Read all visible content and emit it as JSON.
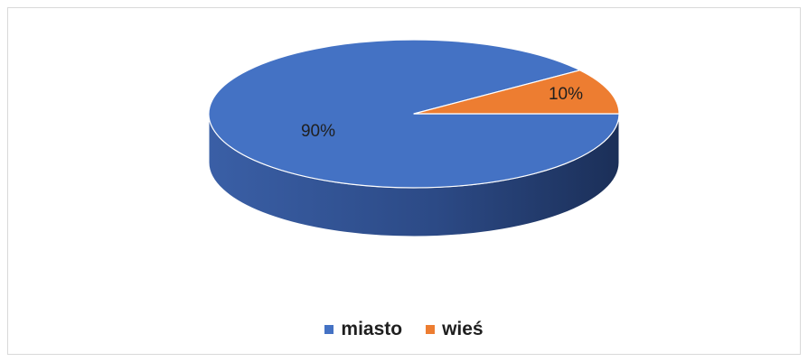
{
  "chart_data": {
    "type": "pie",
    "title": "",
    "three_d": true,
    "legend_position": "bottom",
    "slices": [
      {
        "name": "miasto",
        "value": 90,
        "label": "90%",
        "color": "#4472C4"
      },
      {
        "name": "wieś",
        "value": 10,
        "label": "10%",
        "color": "#ED7D31"
      }
    ]
  }
}
